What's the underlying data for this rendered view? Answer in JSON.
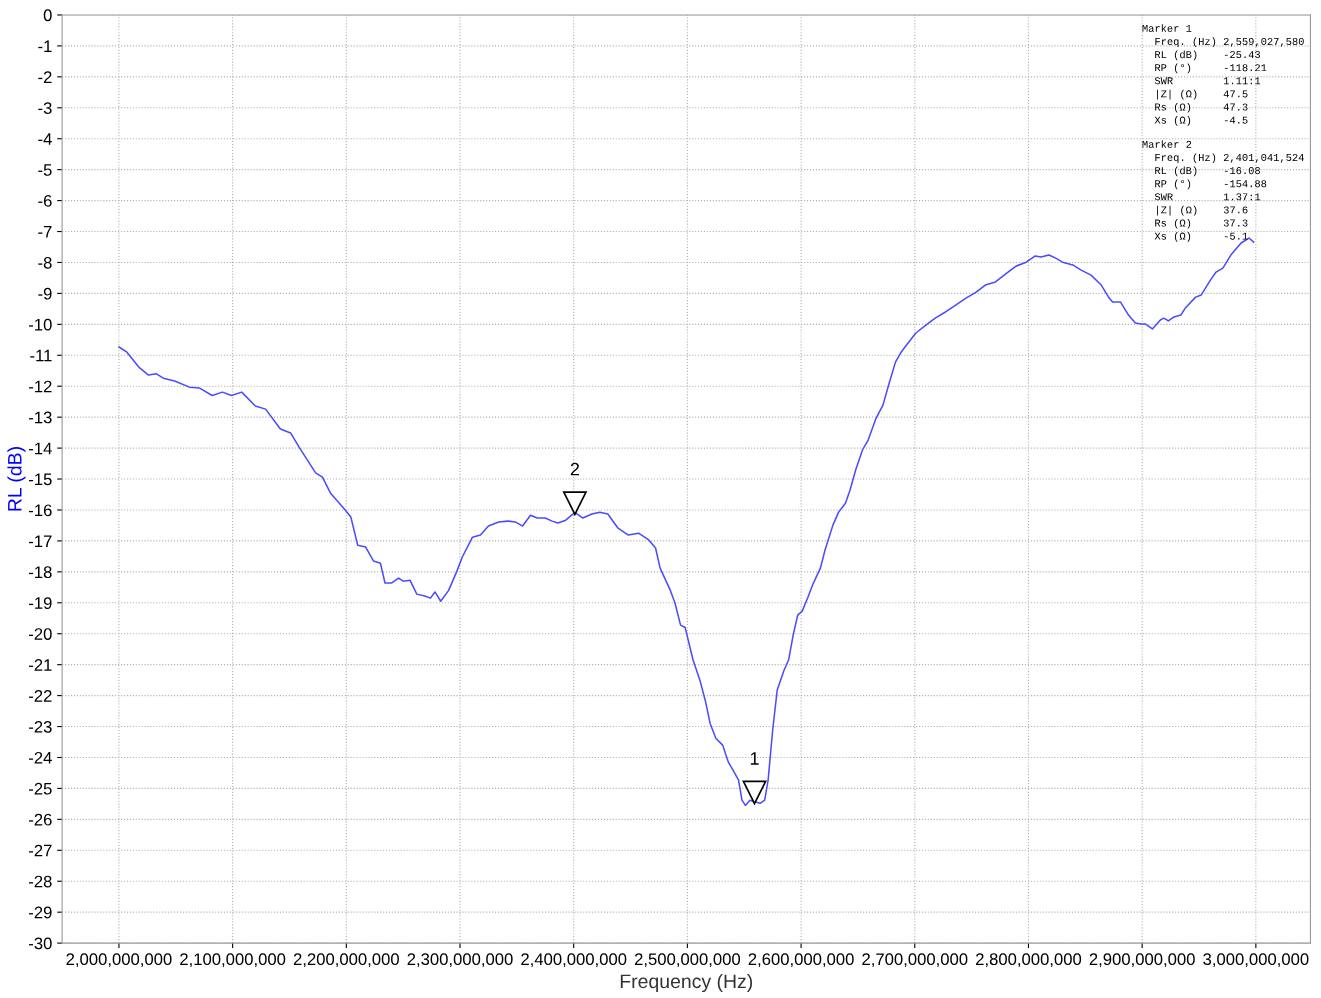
{
  "chart_data": {
    "type": "line",
    "xlabel": "Frequency (Hz)",
    "ylabel": "RL (dB)",
    "xlim": [
      1950000000,
      3048000000
    ],
    "ylim": [
      -30,
      0
    ],
    "xticks": [
      {
        "value": 2000000000,
        "label": "2,000,000,000"
      },
      {
        "value": 2100000000,
        "label": "2,100,000,000"
      },
      {
        "value": 2200000000,
        "label": "2,200,000,000"
      },
      {
        "value": 2300000000,
        "label": "2,300,000,000"
      },
      {
        "value": 2400000000,
        "label": "2,400,000,000"
      },
      {
        "value": 2500000000,
        "label": "2,500,000,000"
      },
      {
        "value": 2600000000,
        "label": "2,600,000,000"
      },
      {
        "value": 2700000000,
        "label": "2,700,000,000"
      },
      {
        "value": 2800000000,
        "label": "2,800,000,000"
      },
      {
        "value": 2900000000,
        "label": "2,900,000,000"
      },
      {
        "value": 3000000000,
        "label": "3,000,000,000"
      }
    ],
    "yticks": [
      0,
      -1,
      -2,
      -3,
      -4,
      -5,
      -6,
      -7,
      -8,
      -9,
      -10,
      -11,
      -12,
      -13,
      -14,
      -15,
      -16,
      -17,
      -18,
      -19,
      -20,
      -21,
      -22,
      -23,
      -24,
      -25,
      -26,
      -27,
      -28,
      -29,
      -30
    ],
    "grid": true,
    "marker": "none",
    "line_style": "solid",
    "x": [
      2000000000,
      2007000000,
      2018000000,
      2026000000,
      2033000000,
      2039000000,
      2049000000,
      2062000000,
      2071000000,
      2082000000,
      2091000000,
      2099000000,
      2108000000,
      2120000000,
      2129000000,
      2142000000,
      2151000000,
      2159000000,
      2173000000,
      2179000000,
      2186000000,
      2199000000,
      2204000000,
      2210000000,
      2217000000,
      2224000000,
      2230000000,
      2234000000,
      2240000000,
      2246000000,
      2250000000,
      2256000000,
      2262000000,
      2269000000,
      2274000000,
      2278000000,
      2283000000,
      2290000000,
      2297000000,
      2302000000,
      2311000000,
      2318000000,
      2325000000,
      2334000000,
      2342000000,
      2349000000,
      2355000000,
      2362000000,
      2368000000,
      2375000000,
      2381000000,
      2386000000,
      2393000000,
      2401041524,
      2408000000,
      2416000000,
      2423000000,
      2430000000,
      2439000000,
      2448000000,
      2457000000,
      2466000000,
      2472000000,
      2476000000,
      2485000000,
      2489000000,
      2494000000,
      2498000000,
      2505000000,
      2511000000,
      2516000000,
      2520000000,
      2525000000,
      2531000000,
      2536000000,
      2540000000,
      2545000000,
      2548000000,
      2551000000,
      2555000000,
      2559027580,
      2564000000,
      2568000000,
      2571000000,
      2575000000,
      2579000000,
      2585000000,
      2589000000,
      2593000000,
      2597000000,
      2601000000,
      2606000000,
      2610000000,
      2617000000,
      2621000000,
      2628000000,
      2633000000,
      2639000000,
      2643000000,
      2648000000,
      2654000000,
      2659000000,
      2666000000,
      2672000000,
      2677000000,
      2683000000,
      2688000000,
      2692000000,
      2701000000,
      2710000000,
      2718000000,
      2727000000,
      2736000000,
      2745000000,
      2754000000,
      2762000000,
      2771000000,
      2780000000,
      2789000000,
      2798000000,
      2806000000,
      2811000000,
      2818000000,
      2824000000,
      2830000000,
      2839000000,
      2846000000,
      2855000000,
      2864000000,
      2871000000,
      2874000000,
      2881000000,
      2888000000,
      2894000000,
      2899000000,
      2903000000,
      2909000000,
      2916000000,
      2919000000,
      2923000000,
      2928000000,
      2934000000,
      2938000000,
      2947000000,
      2952000000,
      2960000000,
      2965000000,
      2971000000,
      2978000000,
      2987000000,
      2994000000,
      2998000000
    ],
    "series": [
      {
        "color": "#4b4bff",
        "values": [
          -10.73,
          -10.9,
          -11.4,
          -11.64,
          -11.6,
          -11.74,
          -11.83,
          -12.03,
          -12.06,
          -12.3,
          -12.19,
          -12.3,
          -12.19,
          -12.64,
          -12.74,
          -13.38,
          -13.51,
          -14.0,
          -14.8,
          -14.94,
          -15.45,
          -16.0,
          -16.23,
          -17.14,
          -17.2,
          -17.65,
          -17.72,
          -18.36,
          -18.36,
          -18.2,
          -18.3,
          -18.27,
          -18.72,
          -18.78,
          -18.85,
          -18.65,
          -18.95,
          -18.6,
          -18.0,
          -17.52,
          -16.88,
          -16.81,
          -16.52,
          -16.39,
          -16.36,
          -16.39,
          -16.52,
          -16.17,
          -16.26,
          -16.26,
          -16.36,
          -16.42,
          -16.33,
          -16.08,
          -16.26,
          -16.13,
          -16.07,
          -16.13,
          -16.59,
          -16.81,
          -16.75,
          -16.97,
          -17.23,
          -17.88,
          -18.6,
          -19.0,
          -19.72,
          -19.8,
          -20.85,
          -21.5,
          -22.2,
          -22.9,
          -23.38,
          -23.6,
          -24.15,
          -24.4,
          -24.73,
          -25.38,
          -25.55,
          -25.38,
          -25.43,
          -25.48,
          -25.38,
          -24.73,
          -23.12,
          -21.82,
          -21.18,
          -20.85,
          -20.05,
          -19.4,
          -19.27,
          -18.82,
          -18.43,
          -17.88,
          -17.3,
          -16.49,
          -16.07,
          -15.78,
          -15.36,
          -14.71,
          -14.06,
          -13.74,
          -13.03,
          -12.61,
          -11.96,
          -11.22,
          -10.9,
          -10.7,
          -10.28,
          -10.02,
          -9.8,
          -9.6,
          -9.38,
          -9.15,
          -8.96,
          -8.73,
          -8.63,
          -8.37,
          -8.12,
          -7.99,
          -7.79,
          -7.82,
          -7.76,
          -7.86,
          -7.99,
          -8.08,
          -8.24,
          -8.41,
          -8.73,
          -9.15,
          -9.28,
          -9.28,
          -9.7,
          -9.96,
          -9.99,
          -9.99,
          -10.15,
          -9.86,
          -9.8,
          -9.89,
          -9.76,
          -9.7,
          -9.47,
          -9.12,
          -9.05,
          -8.57,
          -8.31,
          -8.18,
          -7.76,
          -7.37,
          -7.21,
          -7.34
        ]
      }
    ],
    "annotations": [
      {
        "text": "1",
        "x": 2559027580,
        "y": -25.43
      },
      {
        "text": "2",
        "x": 2401041524,
        "y": -16.08
      },
      "Marker 1\n  Freq. (Hz) 2,559,027,580\n  RL (dB)    -25.43\n  RP (°)     -118.21\n  SWR        1.11:1\n  |Z| (Ω)    47.5\n  Rs (Ω)     47.3\n  Xs (Ω)     -4.5",
      "Marker 2\n  Freq. (Hz) 2,401,041,524\n  RL (dB)    -16.08\n  RP (°)     -154.88\n  SWR        1.37:1\n  |Z| (Ω)    37.6\n  Rs (Ω)     37.3\n  Xs (Ω)     -5.1"
    ]
  }
}
